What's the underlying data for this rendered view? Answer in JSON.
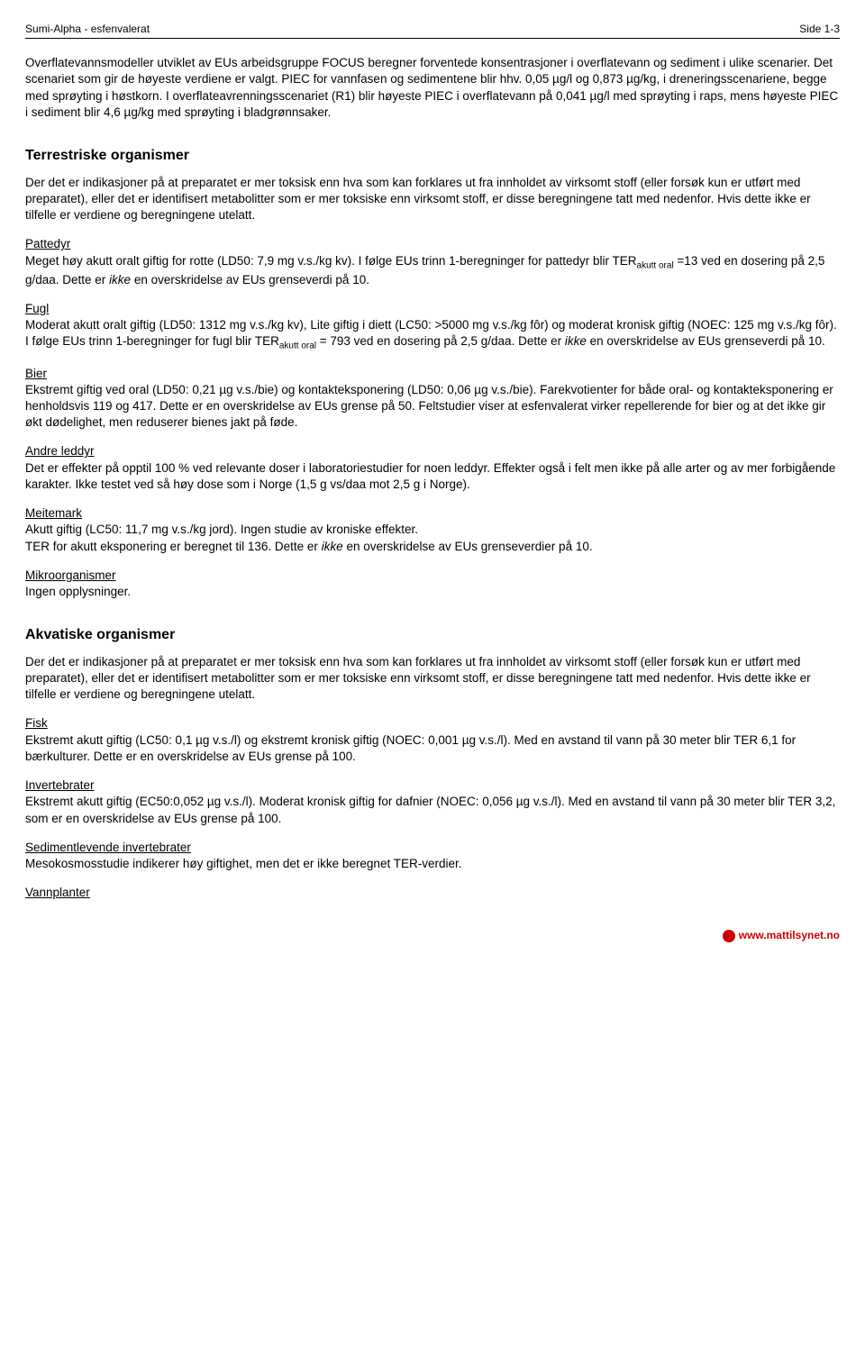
{
  "header": {
    "left": "Sumi-Alpha - esfenvalerat",
    "right": "Side 1-3"
  },
  "intro": "Overflatevannsmodeller utviklet av EUs arbeidsgruppe FOCUS beregner forventede konsentrasjoner i overflatevann og sediment i ulike scenarier. Det scenariet som gir de høyeste verdiene er valgt. PIEC for vannfasen og sedimentene blir hhv. 0,05 µg/l og 0,873 µg/kg, i dreneringsscenariene, begge med sprøyting i høstkorn. I overflateavrenningsscenariet (R1) blir høyeste PIEC i overflatevann på 0,041 µg/l med sprøyting i raps, mens høyeste PIEC i sediment blir 4,6 µg/kg med sprøyting i bladgrønnsaker.",
  "terrestrial": {
    "title": "Terrestriske organismer",
    "intro": "Der det er indikasjoner på at preparatet er mer toksisk enn hva som kan forklares ut fra innholdet av virksomt stoff (eller forsøk kun er utført med preparatet), eller det er identifisert metabolitter som er mer toksiske enn virksomt stoff, er disse beregningene tatt med nedenfor. Hvis dette ikke er tilfelle er verdiene og beregningene utelatt.",
    "pattedyr": {
      "head": "Pattedyr",
      "l1a": "Meget høy akutt oralt giftig for rotte (LD50: 7,9 mg v.s./kg kv). I følge EUs trinn 1-beregninger for pattedyr blir TER",
      "sub": "akutt oral",
      "l1b": " =13 ved en dosering på 2,5 g/daa. Dette er ",
      "ital": "ikke",
      "l1c": " en overskridelse av EUs grenseverdi på 10."
    },
    "fugl": {
      "head": "Fugl",
      "l1": "Moderat akutt oralt giftig (LD50: 1312 mg v.s./kg kv), Lite giftig i diett (LC50: >5000 mg v.s./kg fôr) og moderat kronisk giftig (NOEC: 125 mg v.s./kg fôr).",
      "l2a": "I følge EUs trinn 1-beregninger for fugl blir TER",
      "sub": "akutt oral",
      "l2b": " = 793 ved en dosering på 2,5 g/daa. Dette er ",
      "ital": "ikke",
      "l2c": " en overskridelse av EUs grenseverdi på 10."
    },
    "bier": {
      "head": "Bier",
      "body": "Ekstremt giftig ved oral (LD50: 0,21 µg v.s./bie) og kontakteksponering (LD50: 0,06 µg v.s./bie). Farekvotienter for både oral- og kontakteksponering er henholdsvis 119 og 417. Dette er en overskridelse av EUs grense på 50. Feltstudier viser at esfenvalerat virker repellerende for bier og at det ikke gir økt dødelighet, men reduserer bienes jakt på føde."
    },
    "leddyr": {
      "head": "Andre leddyr",
      "body": "Det er effekter på opptil 100 % ved relevante doser i laboratoriestudier for noen leddyr. Effekter også i felt men ikke på alle arter og av mer forbigående karakter. Ikke testet ved så høy dose som i Norge (1,5 g vs/daa mot 2,5 g i Norge)."
    },
    "meitemark": {
      "head": "Meitemark",
      "l1": "Akutt giftig (LC50: 11,7 mg v.s./kg jord). Ingen studie av kroniske effekter.",
      "l2a": "TER for akutt eksponering er beregnet til 136. Dette er ",
      "ital": "ikke",
      "l2b": " en overskridelse av EUs grenseverdier på 10."
    },
    "mikro": {
      "head": "Mikroorganismer",
      "body": "Ingen opplysninger."
    }
  },
  "aquatic": {
    "title": "Akvatiske organismer",
    "intro": "Der det er indikasjoner på at preparatet er mer toksisk enn hva som kan forklares ut fra innholdet av virksomt stoff (eller forsøk kun er utført med preparatet), eller det er identifisert metabolitter som er mer toksiske enn virksomt stoff, er disse beregningene tatt med nedenfor. Hvis dette ikke er tilfelle er verdiene og beregningene utelatt.",
    "fisk": {
      "head": "Fisk",
      "body": "Ekstremt akutt giftig (LC50: 0,1 µg v.s./l) og ekstremt kronisk giftig (NOEC: 0,001 µg v.s./l). Med en avstand til vann på 30 meter blir TER 6,1 for bærkulturer. Dette er en overskridelse av EUs grense på 100."
    },
    "invert": {
      "head": "Invertebrater",
      "body": "Ekstremt akutt giftig (EC50:0,052 µg v.s./l). Moderat kronisk giftig for dafnier (NOEC: 0,056 µg v.s./l). Med en avstand til vann på 30 meter blir TER 3,2, som er en overskridelse av EUs grense på 100."
    },
    "sed": {
      "head": "Sedimentlevende invertebrater",
      "body": "Mesokosmosstudie indikerer høy giftighet, men det er ikke beregnet TER-verdier."
    },
    "vann": {
      "head": "Vannplanter"
    }
  },
  "footer": "www.mattilsynet.no"
}
